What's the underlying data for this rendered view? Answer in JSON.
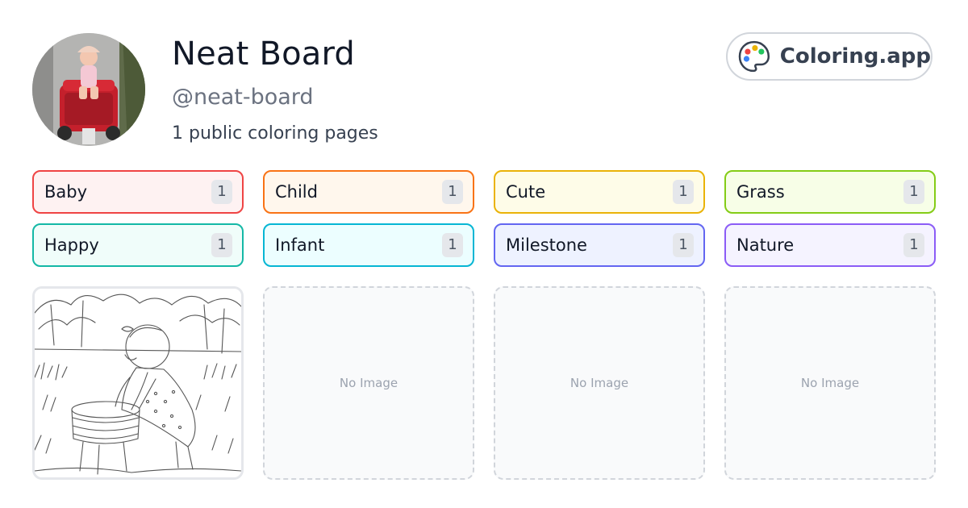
{
  "profile": {
    "name": "Neat Board",
    "handle": "@neat-board",
    "count_text": "1 public coloring pages",
    "avatar_icon": "avatar-photo"
  },
  "brand": {
    "name": "Coloring.app",
    "icon": "palette-icon"
  },
  "tags": [
    {
      "label": "Baby",
      "count": "1",
      "border": "#ef4444",
      "bg": "#fef2f2"
    },
    {
      "label": "Child",
      "count": "1",
      "border": "#f97316",
      "bg": "#fff7ed"
    },
    {
      "label": "Cute",
      "count": "1",
      "border": "#eab308",
      "bg": "#fefce8"
    },
    {
      "label": "Grass",
      "count": "1",
      "border": "#84cc16",
      "bg": "#f7fee7"
    },
    {
      "label": "Happy",
      "count": "1",
      "border": "#14b8a6",
      "bg": "#f0fdfa"
    },
    {
      "label": "Infant",
      "count": "1",
      "border": "#06b6d4",
      "bg": "#ecfeff"
    },
    {
      "label": "Milestone",
      "count": "1",
      "border": "#6366f1",
      "bg": "#eef2ff"
    },
    {
      "label": "Nature",
      "count": "1",
      "border": "#8b5cf6",
      "bg": "#f5f3ff"
    }
  ],
  "cards": [
    {
      "type": "image"
    },
    {
      "type": "empty",
      "placeholder": "No Image"
    },
    {
      "type": "empty",
      "placeholder": "No Image"
    },
    {
      "type": "empty",
      "placeholder": "No Image"
    }
  ]
}
